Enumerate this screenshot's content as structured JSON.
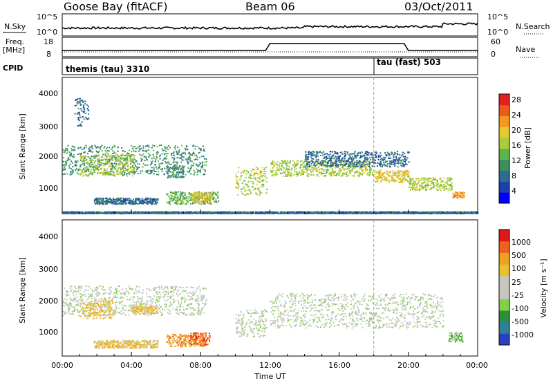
{
  "header": {
    "station": "Goose Bay (fitACF)",
    "beam": "Beam 06",
    "date": "03/Oct/2011"
  },
  "chart_data": [
    {
      "type": "line",
      "name": "noise",
      "labels": {
        "left": "N.Sky",
        "right": "N.Search",
        "ticks_left": [
          "10^5",
          "10^0"
        ],
        "ticks_right": [
          "10^5",
          "10^0"
        ]
      },
      "series": [
        {
          "name": "N.Sky",
          "style": "solid"
        },
        {
          "name": "N.Search",
          "style": "dotted"
        }
      ]
    },
    {
      "type": "line",
      "name": "frequency",
      "labels": {
        "left_line1": "Freq.",
        "left_line2": "[MHz]",
        "right": "Nave",
        "ticks_left": [
          "18",
          "8"
        ],
        "ticks_right": [
          "60",
          "0"
        ]
      },
      "series": [
        {
          "name": "Freq.",
          "style": "solid"
        },
        {
          "name": "Nave",
          "style": "dotted"
        }
      ]
    },
    {
      "type": "table",
      "name": "cpid",
      "label": "CPID",
      "segments": [
        {
          "text": "themis (tau) 3310",
          "start_h": 0,
          "end_h": 18
        },
        {
          "text": "tau (fast) 503",
          "start_h": 18,
          "end_h": 24
        }
      ]
    },
    {
      "type": "heatmap",
      "name": "power",
      "ylabel": "Slant Range [km]",
      "yticks": [
        "4000",
        "3000",
        "2000",
        "1000"
      ],
      "ylim": [
        180,
        4550
      ],
      "colorbar": {
        "label": "Power [dB]",
        "ticks": [
          "28",
          "24",
          "20",
          "16",
          "12",
          "8",
          "4"
        ],
        "colors": [
          "#0000ff",
          "#1e3fb0",
          "#2e6c8f",
          "#3d8f5f",
          "#5bb54a",
          "#a8cc3a",
          "#e8c832",
          "#f39a1e",
          "#ee5a1a",
          "#e32020"
        ]
      },
      "regions": [
        {
          "h0": 0.0,
          "h1": 8.3,
          "r0": 1450,
          "r1": 2400,
          "level": 3
        },
        {
          "h0": 1.0,
          "h1": 4.2,
          "r0": 1400,
          "r1": 2100,
          "level": 5
        },
        {
          "h0": 0.7,
          "h1": 1.5,
          "r0": 3000,
          "r1": 3900,
          "level": 2
        },
        {
          "h0": 6.0,
          "h1": 7.0,
          "r0": 1350,
          "r1": 1750,
          "level": 3
        },
        {
          "h0": 1.8,
          "h1": 5.5,
          "r0": 500,
          "r1": 700,
          "level": 2
        },
        {
          "h0": 6.0,
          "h1": 9.0,
          "r0": 500,
          "r1": 900,
          "level": 4
        },
        {
          "h0": 7.5,
          "h1": 8.6,
          "r0": 550,
          "r1": 900,
          "level": 6
        },
        {
          "h0": 10.0,
          "h1": 11.8,
          "r0": 800,
          "r1": 1700,
          "level": 5
        },
        {
          "h0": 12.0,
          "h1": 17.9,
          "r0": 1400,
          "r1": 1900,
          "level": 5
        },
        {
          "h0": 14.0,
          "h1": 20.0,
          "r0": 1700,
          "r1": 2200,
          "level": 2
        },
        {
          "h0": 18.0,
          "h1": 20.0,
          "r0": 1200,
          "r1": 1600,
          "level": 6
        },
        {
          "h0": 20.0,
          "h1": 22.5,
          "r0": 950,
          "r1": 1350,
          "level": 5
        },
        {
          "h0": 22.5,
          "h1": 23.2,
          "r0": 700,
          "r1": 900,
          "level": 7
        },
        {
          "h0": 0.0,
          "h1": 24.0,
          "r0": 200,
          "r1": 260,
          "level": 2
        }
      ]
    },
    {
      "type": "heatmap",
      "name": "velocity",
      "ylabel": "Slant Range [km]",
      "yticks": [
        "4000",
        "3000",
        "2000",
        "1000"
      ],
      "ylim": [
        180,
        4550
      ],
      "colorbar": {
        "label": "Velocity [m s⁻¹]",
        "ticks": [
          "1000",
          "500",
          "100",
          "25",
          "-25",
          "-100",
          "-500",
          "-1000"
        ],
        "colors": [
          "#2c3fc0",
          "#2e7f9a",
          "#2d8f3c",
          "#7fd24a",
          "#c7c7c0",
          "#c7c7c0",
          "#e8c030",
          "#f0a020",
          "#f06020",
          "#e01818"
        ]
      },
      "regions": [
        {
          "h0": 0.0,
          "h1": 8.3,
          "r0": 1500,
          "r1": 2450,
          "level": 4
        },
        {
          "h0": 1.0,
          "h1": 3.0,
          "r0": 1400,
          "r1": 2000,
          "level": 6
        },
        {
          "h0": 4.0,
          "h1": 5.5,
          "r0": 1550,
          "r1": 1800,
          "level": 6
        },
        {
          "h0": 1.8,
          "h1": 5.5,
          "r0": 450,
          "r1": 700,
          "level": 6
        },
        {
          "h0": 6.0,
          "h1": 8.3,
          "r0": 500,
          "r1": 900,
          "level": 7
        },
        {
          "h0": 7.3,
          "h1": 8.5,
          "r0": 550,
          "r1": 950,
          "level": 8
        },
        {
          "h0": 10.0,
          "h1": 11.8,
          "r0": 800,
          "r1": 1700,
          "level": 4
        },
        {
          "h0": 12.0,
          "h1": 22.0,
          "r0": 1100,
          "r1": 2200,
          "level": 4
        },
        {
          "h0": 22.3,
          "h1": 23.1,
          "r0": 650,
          "r1": 950,
          "level": 3
        }
      ]
    }
  ],
  "x_axis": {
    "ticks": [
      "00:00",
      "04:00",
      "08:00",
      "12:00",
      "16:00",
      "20:00",
      "00:00"
    ],
    "label": "Time UT",
    "xlim_hours": [
      0,
      24
    ]
  }
}
